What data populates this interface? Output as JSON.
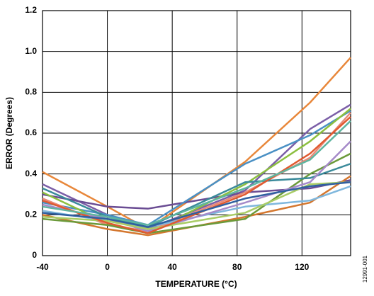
{
  "chart_data": {
    "type": "line",
    "x_label": "TEMPERATURE (°C)",
    "y_label": "ERROR (Degrees)",
    "figure_id": "12991-001",
    "x": [
      -40,
      0,
      25,
      85,
      125,
      150
    ],
    "xlim": [
      -40,
      150
    ],
    "xticks": [
      -40,
      0,
      40,
      80,
      120
    ],
    "ylim": [
      0,
      1.2
    ],
    "yticks": [
      0,
      0.2,
      0.4,
      0.6,
      0.8,
      {
        "value": 1,
        "label": "1.0"
      },
      1.2
    ],
    "grid": true,
    "series": [
      {
        "color": "#e8873a",
        "values": [
          0.41,
          0.24,
          0.13,
          0.46,
          0.75,
          0.97
        ]
      },
      {
        "color": "#7b5ea7",
        "values": [
          0.35,
          0.2,
          0.13,
          0.32,
          0.62,
          0.74
        ]
      },
      {
        "color": "#6a4c93",
        "values": [
          0.3,
          0.24,
          0.23,
          0.31,
          0.33,
          0.37
        ]
      },
      {
        "color": "#4a90c4",
        "values": [
          0.26,
          0.2,
          0.15,
          0.45,
          0.59,
          0.71
        ]
      },
      {
        "color": "#8cbf3f",
        "values": [
          0.31,
          0.16,
          0.11,
          0.35,
          0.56,
          0.72
        ]
      },
      {
        "color": "#e88a78",
        "values": [
          0.28,
          0.15,
          0.12,
          0.31,
          0.48,
          0.7
        ]
      },
      {
        "color": "#d4772f",
        "values": [
          0.2,
          0.13,
          0.1,
          0.19,
          0.26,
          0.39
        ]
      },
      {
        "color": "#6b9a3a",
        "values": [
          0.18,
          0.15,
          0.11,
          0.18,
          0.4,
          0.5
        ]
      },
      {
        "color": "#7fb7dd",
        "values": [
          0.22,
          0.17,
          0.14,
          0.24,
          0.27,
          0.34
        ]
      },
      {
        "color": "#3a8a9a",
        "values": [
          0.33,
          0.19,
          0.14,
          0.36,
          0.38,
          0.45
        ]
      },
      {
        "color": "#a58ac9",
        "values": [
          0.25,
          0.18,
          0.12,
          0.26,
          0.36,
          0.56
        ]
      },
      {
        "color": "#a9cc66",
        "values": [
          0.19,
          0.17,
          0.13,
          0.21,
          0.35,
          0.36
        ]
      },
      {
        "color": "#e05a30",
        "values": [
          0.27,
          0.16,
          0.11,
          0.3,
          0.5,
          0.68
        ]
      },
      {
        "color": "#3060a0",
        "values": [
          0.21,
          0.18,
          0.14,
          0.28,
          0.34,
          0.36
        ]
      },
      {
        "color": "#5fb5a0",
        "values": [
          0.24,
          0.19,
          0.15,
          0.33,
          0.47,
          0.66
        ]
      }
    ]
  }
}
